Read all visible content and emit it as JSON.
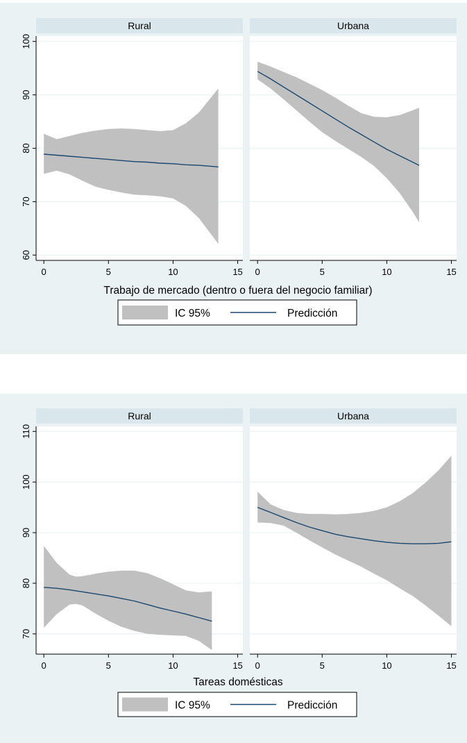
{
  "chart_data": [
    {
      "type": "line",
      "xlabel": "Trabajo de mercado (dentro o fuera del negocio familiar)",
      "ylabel": "",
      "legend": {
        "ci_label": "IC 95%",
        "line_label": "Predicción",
        "position": "bottom"
      },
      "colors": {
        "ci": "#c0c0c0",
        "line": "#1a476f",
        "background": "#eaf2f3",
        "strip": "#d9e6eb",
        "grid": "#eaf2f3"
      },
      "ylim": [
        59,
        101
      ],
      "yticks": [
        60,
        70,
        80,
        90,
        100
      ],
      "xticks": [
        0,
        5,
        10,
        15
      ],
      "panels": [
        {
          "title": "Rural",
          "xlim": [
            -0.6,
            15.4
          ],
          "x": [
            0,
            1,
            2,
            3,
            4,
            5,
            6,
            7,
            8,
            9,
            10,
            11,
            12,
            13,
            13.5
          ],
          "prediction": [
            78.9,
            78.7,
            78.5,
            78.3,
            78.1,
            77.9,
            77.7,
            77.5,
            77.4,
            77.2,
            77.1,
            76.9,
            76.8,
            76.6,
            76.5
          ],
          "ci_upper": [
            82.7,
            81.7,
            82.3,
            82.9,
            83.3,
            83.6,
            83.7,
            83.6,
            83.4,
            83.2,
            83.4,
            84.7,
            86.7,
            89.7,
            91.2
          ],
          "ci_lower": [
            75.2,
            75.8,
            75.1,
            73.9,
            72.8,
            72.2,
            71.7,
            71.3,
            71.2,
            71.0,
            70.6,
            69.2,
            66.9,
            63.7,
            62.1
          ]
        },
        {
          "title": "Urbana",
          "xlim": [
            -0.6,
            15.4
          ],
          "x": [
            0,
            1,
            2,
            3,
            4,
            5,
            6,
            7,
            8,
            9,
            10,
            11,
            12,
            12.5
          ],
          "prediction": [
            94.4,
            93.0,
            91.5,
            90.0,
            88.5,
            87.0,
            85.5,
            84.0,
            82.6,
            81.2,
            79.8,
            78.6,
            77.4,
            76.8
          ],
          "ci_upper": [
            96.2,
            95.3,
            94.3,
            93.3,
            92.1,
            90.9,
            89.5,
            88.0,
            86.6,
            85.9,
            85.8,
            86.2,
            87.1,
            87.6
          ],
          "ci_lower": [
            92.9,
            91.2,
            89.2,
            87.1,
            85.0,
            83.0,
            81.4,
            79.9,
            78.4,
            76.7,
            74.4,
            71.6,
            68.1,
            66.1
          ]
        }
      ]
    },
    {
      "type": "line",
      "xlabel": "Tareas domésticas",
      "ylabel": "",
      "legend": {
        "ci_label": "IC 95%",
        "line_label": "Predicción",
        "position": "bottom"
      },
      "colors": {
        "ci": "#c0c0c0",
        "line": "#1a476f",
        "background": "#eaf2f3",
        "strip": "#d9e6eb",
        "grid": "#eaf2f3"
      },
      "ylim": [
        66,
        111
      ],
      "yticks": [
        70,
        80,
        90,
        100,
        110
      ],
      "xticks": [
        0,
        5,
        10,
        15
      ],
      "panels": [
        {
          "title": "Rural",
          "xlim": [
            -0.6,
            15.4
          ],
          "x": [
            0,
            1,
            2,
            2.5,
            3,
            4,
            5,
            6,
            7,
            8,
            9,
            10,
            11,
            12,
            13
          ],
          "prediction": [
            79.2,
            79.0,
            78.7,
            78.5,
            78.3,
            77.9,
            77.5,
            77.0,
            76.5,
            75.8,
            75.1,
            74.5,
            73.9,
            73.2,
            72.5
          ],
          "ci_upper": [
            87.4,
            84.0,
            81.7,
            81.3,
            81.4,
            81.9,
            82.3,
            82.5,
            82.5,
            82.0,
            81.0,
            79.8,
            78.6,
            78.2,
            78.4
          ],
          "ci_lower": [
            71.2,
            73.9,
            75.8,
            75.9,
            75.6,
            74.0,
            72.6,
            71.4,
            70.6,
            70.0,
            69.8,
            69.7,
            69.6,
            68.6,
            66.8
          ]
        },
        {
          "title": "Urbana",
          "xlim": [
            -0.6,
            15.4
          ],
          "x": [
            0,
            1,
            2,
            3,
            4,
            5,
            6,
            7,
            8,
            9,
            10,
            11,
            12,
            13,
            14,
            15
          ],
          "prediction": [
            95.0,
            94.0,
            93.0,
            92.0,
            91.1,
            90.4,
            89.7,
            89.2,
            88.8,
            88.4,
            88.1,
            87.9,
            87.8,
            87.8,
            87.9,
            88.2
          ],
          "ci_upper": [
            98.1,
            95.6,
            94.5,
            93.9,
            93.7,
            93.7,
            93.6,
            93.7,
            93.9,
            94.3,
            95.0,
            96.2,
            97.8,
            99.9,
            102.3,
            105.2
          ],
          "ci_lower": [
            92.0,
            91.9,
            91.4,
            90.0,
            88.5,
            87.1,
            85.7,
            84.5,
            83.3,
            81.9,
            80.6,
            79.0,
            77.5,
            75.6,
            73.6,
            71.5
          ]
        }
      ]
    }
  ]
}
